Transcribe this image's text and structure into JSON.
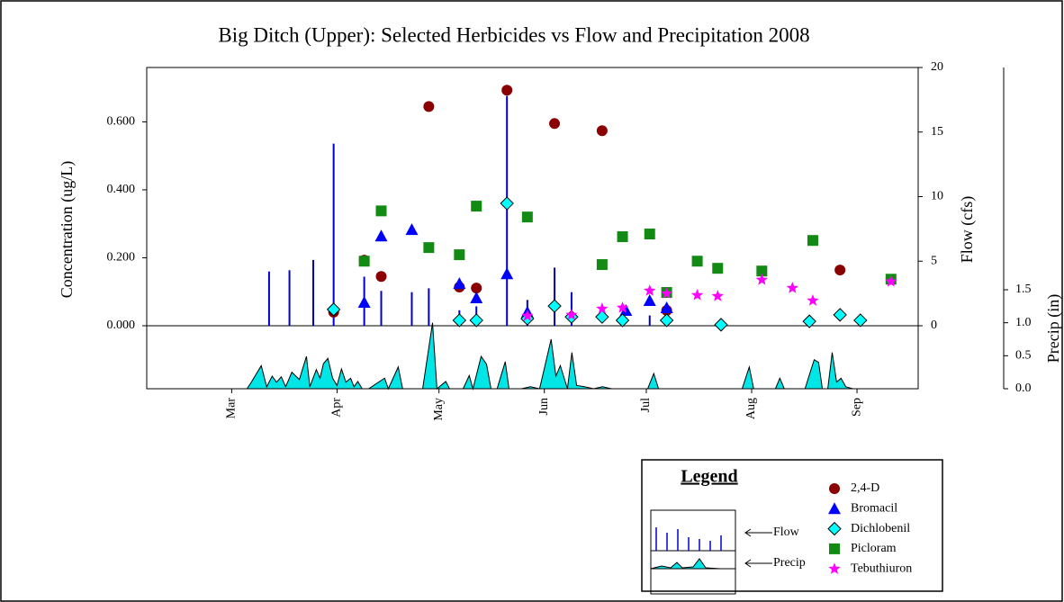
{
  "chart_data": {
    "type": "combo",
    "title": "Big Ditch (Upper):  Selected Herbicides vs Flow and Precipitation 2008",
    "ylabel": "Concentration (ug/L)",
    "y2label": "Flow (cfs)",
    "y3label": "Precip (in)",
    "legend_title": "Legend",
    "xlim": [
      36,
      263
    ],
    "xticks": [
      {
        "value": 61,
        "label": "Mar"
      },
      {
        "value": 92,
        "label": "Apr"
      },
      {
        "value": 122,
        "label": "May"
      },
      {
        "value": 153,
        "label": "Jun"
      },
      {
        "value": 183,
        "label": "Jul"
      },
      {
        "value": 214,
        "label": "Aug"
      },
      {
        "value": 245,
        "label": "Sep"
      }
    ],
    "ylim": [
      0,
      0.76
    ],
    "yticks": [
      {
        "value": 0,
        "label": "0.000"
      },
      {
        "value": 0.2,
        "label": "0.200"
      },
      {
        "value": 0.4,
        "label": "0.400"
      },
      {
        "value": 0.6,
        "label": "0.600"
      }
    ],
    "y2lim": [
      0,
      20
    ],
    "y2ticks": [
      0,
      5,
      10,
      15,
      20
    ],
    "y3lim": [
      0,
      1.5
    ],
    "y3ticks": [
      {
        "value": 0,
        "label": "0.0"
      },
      {
        "value": 0.5,
        "label": "0.5"
      },
      {
        "value": 1,
        "label": "1.0"
      },
      {
        "value": 1.5,
        "label": "1.5"
      }
    ],
    "series": [
      {
        "name": "2,4-D",
        "type": "scatter",
        "marker": "circle",
        "color": "#8b0000",
        "axis": "y",
        "x": [
          91,
          100,
          105,
          119,
          128,
          133,
          142,
          156,
          170,
          189,
          240
        ],
        "values": [
          0.04,
          0.193,
          0.145,
          0.645,
          0.114,
          0.111,
          0.693,
          0.595,
          0.574,
          0.045,
          0.164
        ]
      },
      {
        "name": "Bromacil",
        "type": "scatter",
        "marker": "triangle",
        "color": "#0000ff",
        "axis": "y",
        "x": [
          100,
          105,
          114,
          128,
          133,
          142,
          148,
          177,
          184,
          189
        ],
        "values": [
          0.069,
          0.264,
          0.283,
          0.124,
          0.082,
          0.153,
          0.04,
          0.045,
          0.074,
          0.053
        ]
      },
      {
        "name": "Dichlobenil",
        "type": "scatter",
        "marker": "diamond",
        "color": "#00ffff",
        "axis": "y",
        "x": [
          91,
          128,
          133,
          142,
          148,
          156,
          161,
          170,
          176,
          189,
          205,
          231,
          240,
          246
        ],
        "values": [
          0.048,
          0.016,
          0.016,
          0.36,
          0.021,
          0.058,
          0.026,
          0.026,
          0.016,
          0.016,
          0.003,
          0.013,
          0.032,
          0.016
        ]
      },
      {
        "name": "Picloram",
        "type": "scatter",
        "marker": "square",
        "color": "#138a13",
        "axis": "y",
        "x": [
          100,
          105,
          119,
          128,
          133,
          148,
          170,
          176,
          184,
          189,
          198,
          204,
          217,
          232,
          255
        ],
        "values": [
          0.19,
          0.338,
          0.23,
          0.209,
          0.352,
          0.32,
          0.18,
          0.262,
          0.27,
          0.098,
          0.19,
          0.169,
          0.161,
          0.251,
          0.137
        ]
      },
      {
        "name": "Tebuthiuron",
        "type": "scatter",
        "marker": "star",
        "color": "#ff00ff",
        "axis": "y",
        "x": [
          148,
          161,
          170,
          176,
          184,
          189,
          198,
          204,
          217,
          226,
          232,
          255
        ],
        "values": [
          0.029,
          0.032,
          0.05,
          0.053,
          0.103,
          0.095,
          0.09,
          0.087,
          0.135,
          0.111,
          0.074,
          0.13
        ]
      },
      {
        "name": "Flow",
        "type": "stem",
        "color": "#0000cd",
        "axis": "y2",
        "x": [
          72,
          78,
          85,
          91,
          100,
          105,
          114,
          119,
          128,
          133,
          142,
          148,
          156,
          161,
          184
        ],
        "values": [
          4.2,
          4.3,
          5.1,
          14.1,
          3.8,
          2.7,
          2.6,
          2.9,
          1.2,
          1.5,
          17.8,
          2.0,
          4.5,
          2.6,
          0.8
        ]
      },
      {
        "name": "Precip",
        "type": "area",
        "color": "#00e5e5",
        "axis": "y3",
        "x": [
          36,
          65.5,
          66.8,
          69.7,
          71.3,
          72.9,
          74.2,
          75.6,
          76.9,
          78.7,
          80.9,
          83.0,
          84.0,
          85.9,
          87.0,
          88.0,
          89.3,
          90.7,
          92.0,
          93.3,
          94.6,
          96.0,
          97.0,
          98.1,
          99.4,
          101.3,
          106.0,
          107.1,
          110.0,
          111.3,
          117.2,
          120.1,
          121.4,
          124.0,
          125.1,
          129.1,
          130.9,
          132.0,
          134.4,
          136.0,
          137.3,
          139.1,
          141.5,
          142.6,
          146.3,
          148.9,
          151.6,
          155.0,
          156.4,
          157.7,
          159.8,
          161.1,
          162.5,
          164.8,
          167.5,
          170.1,
          172.8,
          183.4,
          185.2,
          186.6,
          211.2,
          213.3,
          214.6,
          221.0,
          222.3,
          223.6,
          229.7,
          232.4,
          233.7,
          234.8,
          236.4,
          237.7,
          239.0,
          240.3,
          241.7,
          243.8,
          263
        ],
        "values": [
          0,
          0,
          0.1,
          0.35,
          0.03,
          0.19,
          0.1,
          0.18,
          0.03,
          0.25,
          0.14,
          0.49,
          0.03,
          0.29,
          0.16,
          0.38,
          0.46,
          0.16,
          0.05,
          0.3,
          0.1,
          0.16,
          0.03,
          0.11,
          0,
          0,
          0.16,
          0,
          0.33,
          0,
          0,
          1.0,
          0,
          0.11,
          0,
          0,
          0.2,
          0,
          0.49,
          0.37,
          0,
          0,
          0.41,
          0,
          0,
          0.03,
          0,
          0.75,
          0.19,
          0.35,
          0,
          0.55,
          0.05,
          0.03,
          0,
          0.03,
          0,
          0,
          0.23,
          0,
          0,
          0.33,
          0,
          0,
          0.16,
          0,
          0,
          0.44,
          0.4,
          0,
          0,
          0.55,
          0.1,
          0.16,
          0.03,
          0,
          0
        ]
      }
    ]
  }
}
